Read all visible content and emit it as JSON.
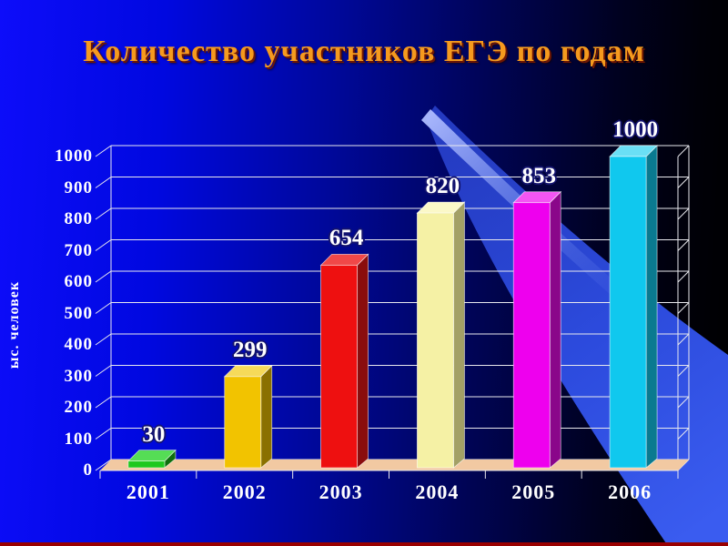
{
  "slide": {
    "title": "Количество участников ЕГЭ по годам",
    "title_color": "#F59A1E",
    "bottom_line_color": "#990000",
    "background_left_color": "#0d0dfa",
    "background_right_color": "#000000",
    "swoosh_color": "#2E4EE6"
  },
  "chart_data": {
    "type": "bar",
    "title": "Количество участников ЕГЭ по годам",
    "categories": [
      "2001",
      "2002",
      "2003",
      "2004",
      "2005",
      "2006"
    ],
    "values": [
      30,
      299,
      654,
      820,
      853,
      1000
    ],
    "data_labels": [
      "30",
      "299",
      "654",
      "820",
      "853",
      "1000"
    ],
    "xlabel": "",
    "ylabel": "ыс. человек",
    "ylim": [
      0,
      1000
    ],
    "yticks": [
      0,
      100,
      200,
      300,
      400,
      500,
      600,
      700,
      800,
      900,
      1000
    ],
    "grid": true,
    "legend": false,
    "style_3d": true,
    "axis_text_color": "#FFFFFF",
    "data_label_color": "#FFFFFF",
    "data_label_outline_color": "#13136E",
    "gridline_color": "#E9E9EE",
    "floor_color": "#F2C9A2",
    "bar_colors": [
      {
        "front": "#1EC81E",
        "top": "#55DD55",
        "side": "#0E6E0E"
      },
      {
        "front": "#F2C300",
        "top": "#F6DA5A",
        "side": "#8A7000"
      },
      {
        "front": "#EE1010",
        "top": "#F04848",
        "side": "#8A0D0D"
      },
      {
        "front": "#F5F1A5",
        "top": "#FBF8C8",
        "side": "#A3A066"
      },
      {
        "front": "#EE00EE",
        "top": "#F355F3",
        "side": "#8A068A"
      },
      {
        "front": "#10C8EE",
        "top": "#6ADFF5",
        "side": "#0A7A90"
      }
    ]
  }
}
